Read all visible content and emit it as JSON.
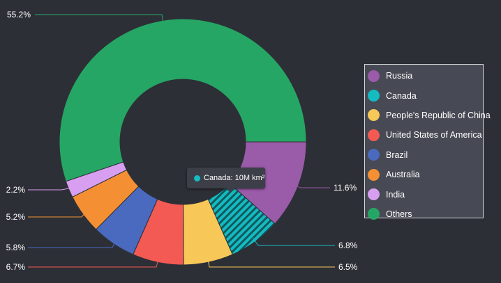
{
  "chart_data": {
    "type": "pie",
    "variant": "donut",
    "title": "",
    "categories": [
      "Russia",
      "Canada",
      "People's Republic of China",
      "United States of America",
      "Brazil",
      "Australia",
      "India",
      "Others"
    ],
    "values": [
      11.6,
      6.8,
      6.5,
      6.7,
      5.8,
      5.2,
      2.2,
      55.2
    ],
    "labels": [
      "11.6%",
      "6.8%",
      "6.5%",
      "6.7%",
      "5.8%",
      "5.2%",
      "2.2%",
      "55.2%"
    ],
    "colors": [
      "#9a5ba9",
      "#14bcc2",
      "#f7c858",
      "#f35a53",
      "#4a6abf",
      "#f49033",
      "#d89ff0",
      "#26a664"
    ],
    "unit": "percent",
    "start_angle_deg": 90,
    "direction": "clockwise",
    "highlighted": "Canada",
    "legend_position": "right"
  },
  "legend": {
    "items": [
      "Russia",
      "Canada",
      "People's Republic of China",
      "United States of America",
      "Brazil",
      "Australia",
      "India",
      "Others"
    ]
  },
  "tooltip": {
    "text": "Canada: 10M km²",
    "color": "#14bcc2"
  }
}
